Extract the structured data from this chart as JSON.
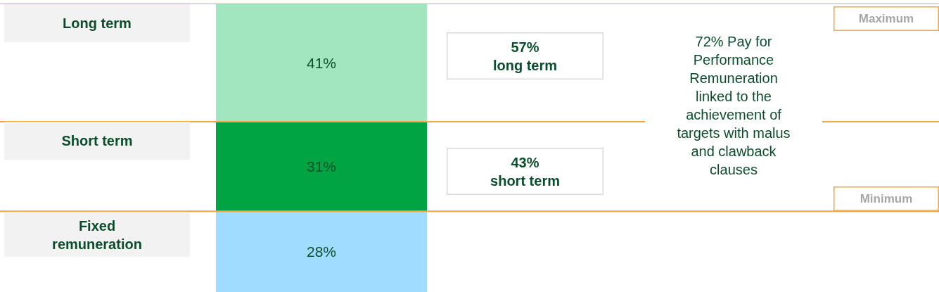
{
  "chart_data": {
    "type": "bar",
    "stacked": true,
    "categories": [
      null
    ],
    "ylim": [
      0,
      100
    ],
    "tick_labels": false,
    "series": [
      {
        "color": "#a0dcff",
        "values": [
          28
        ],
        "value_labels": [
          "28%"
        ]
      },
      {
        "color": "#00a443",
        "values": [
          31
        ],
        "value_labels": [
          "31%"
        ]
      },
      {
        "color": "#a0e6be",
        "values": [
          41
        ],
        "value_labels": [
          "41%"
        ]
      }
    ],
    "ref_lines": [
      {
        "axis": "y",
        "value": 100,
        "color": "#f7a541"
      },
      {
        "axis": "y",
        "value": 59,
        "color": "#f7a541"
      },
      {
        "axis": "y",
        "value": 28,
        "color": "#f7a541"
      }
    ],
    "annotations": [
      "Long term",
      "Short term",
      "Fixed\nremuneration",
      "57%\nlong term",
      "43%\nshort term",
      "72% Pay for\nPerformance\nRemuneration\nlinked to the\nachievement of\ntargets with malus\nand clawback\nclauses",
      "Maximum",
      "Minimum"
    ]
  }
}
